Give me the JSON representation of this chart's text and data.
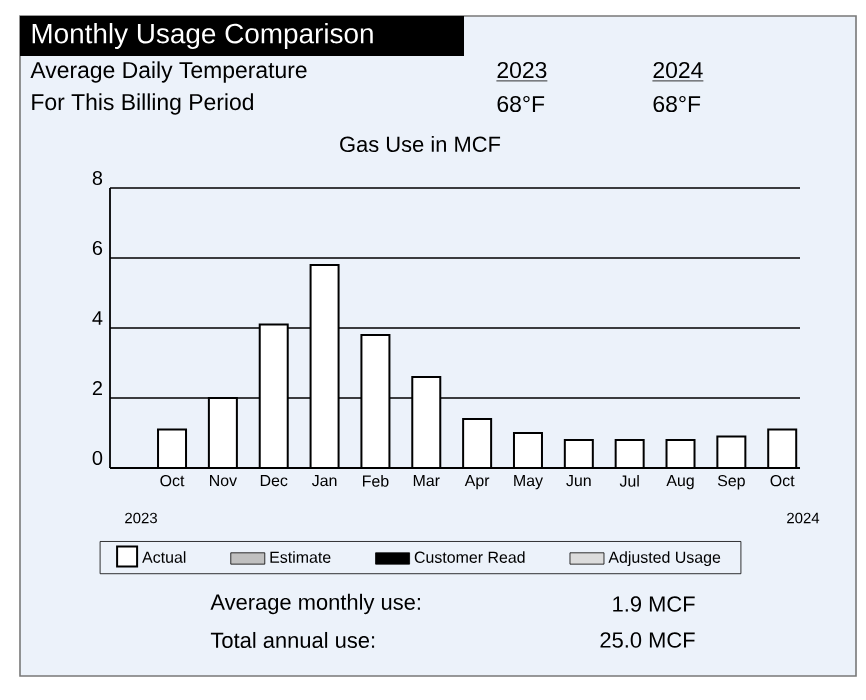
{
  "chart_data": {
    "type": "bar",
    "title": "Monthly Usage Comparison",
    "subtitle": "Gas Use in MCF",
    "categories": [
      "Oct",
      "Nov",
      "Dec",
      "Jan",
      "Feb",
      "Mar",
      "Apr",
      "May",
      "Jun",
      "Jul",
      "Aug",
      "Sep",
      "Oct"
    ],
    "series": [
      {
        "name": "Actual",
        "color": "#ffffff",
        "values": [
          1.1,
          2.0,
          4.1,
          5.8,
          3.8,
          2.6,
          1.4,
          1.0,
          0.8,
          0.8,
          0.8,
          0.9,
          1.1
        ]
      },
      {
        "name": "Estimate",
        "color": "#c0c0c0",
        "values": [
          null,
          null,
          null,
          null,
          null,
          null,
          null,
          null,
          null,
          null,
          null,
          null,
          null
        ]
      },
      {
        "name": "Customer Read",
        "color": "#000000",
        "values": [
          null,
          null,
          null,
          null,
          null,
          null,
          null,
          null,
          null,
          null,
          null,
          null,
          null
        ]
      },
      {
        "name": "Adjusted Usage",
        "color": "#dcdcdc",
        "values": [
          null,
          null,
          null,
          null,
          null,
          null,
          null,
          null,
          null,
          null,
          null,
          null,
          null
        ]
      }
    ],
    "ylim": [
      0,
      8
    ],
    "yticks": [
      0,
      2,
      4,
      6,
      8
    ],
    "grid": "y",
    "legend": "bottom",
    "annotations": [
      "Average Daily Temperature",
      "For This Billing Period",
      "2023",
      "68°F",
      "2024",
      "68°F",
      "2023",
      "2024",
      "Average monthly use:",
      "1.9 MCF",
      "Total annual use:",
      "25.0 MCF"
    ]
  }
}
